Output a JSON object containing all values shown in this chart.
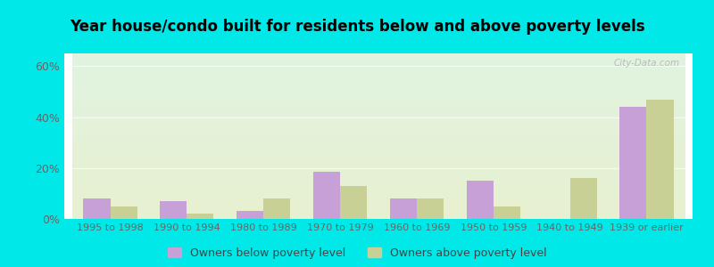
{
  "categories": [
    "1995 to 1998",
    "1990 to 1994",
    "1980 to 1989",
    "1970 to 1979",
    "1960 to 1969",
    "1950 to 1959",
    "1940 to 1949",
    "1939 or earlier"
  ],
  "below_poverty": [
    8.0,
    7.0,
    3.0,
    18.5,
    8.0,
    15.0,
    0.0,
    44.0
  ],
  "above_poverty": [
    5.0,
    2.0,
    8.0,
    13.0,
    8.0,
    5.0,
    16.0,
    47.0
  ],
  "below_color": "#c8a0d8",
  "above_color": "#c8d096",
  "title": "Year house/condo built for residents below and above poverty levels",
  "ylabel_ticks": [
    0,
    20,
    40,
    60
  ],
  "ylim": [
    0,
    65
  ],
  "background_outer": "#00e8e8",
  "legend_below": "Owners below poverty level",
  "legend_above": "Owners above poverty level",
  "watermark": "City-Data.com"
}
